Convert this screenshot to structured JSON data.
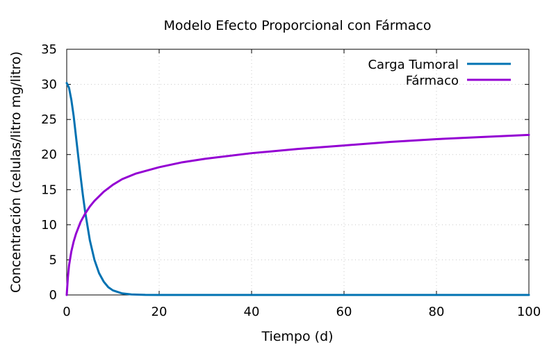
{
  "chart_data": {
    "type": "line",
    "title": "Modelo Efecto Proporcional con Fármaco",
    "xlabel": "Tiempo (d)",
    "ylabel": "Concentración (celulas/litro  mg/litro)",
    "xlim": [
      0,
      100
    ],
    "ylim": [
      0,
      35
    ],
    "xticks": [
      "0",
      "20",
      "40",
      "60",
      "80",
      "100"
    ],
    "yticks": [
      "0",
      "5",
      "10",
      "15",
      "20",
      "25",
      "30",
      "35"
    ],
    "grid": true,
    "legend_position": "top-right",
    "series": [
      {
        "name": "Carga Tumoral",
        "color": "#0072b2",
        "points": [
          [
            0,
            30.2
          ],
          [
            0.5,
            29.5
          ],
          [
            1,
            27.8
          ],
          [
            1.5,
            25.5
          ],
          [
            2,
            22.6
          ],
          [
            2.5,
            19.7
          ],
          [
            3,
            16.9
          ],
          [
            3.5,
            14.2
          ],
          [
            4,
            11.8
          ],
          [
            5,
            7.8
          ],
          [
            6,
            5.0
          ],
          [
            7,
            3.1
          ],
          [
            8,
            1.9
          ],
          [
            9,
            1.1
          ],
          [
            10,
            0.65
          ],
          [
            12,
            0.22
          ],
          [
            14,
            0.07
          ],
          [
            17,
            0.01
          ],
          [
            20,
            0
          ],
          [
            40,
            0
          ],
          [
            60,
            0
          ],
          [
            80,
            0
          ],
          [
            100,
            0
          ]
        ]
      },
      {
        "name": "Fármaco",
        "color": "#9400d3",
        "points": [
          [
            0,
            0
          ],
          [
            0.25,
            2.5
          ],
          [
            0.5,
            4.2
          ],
          [
            1,
            6.2
          ],
          [
            1.5,
            7.6
          ],
          [
            2,
            8.7
          ],
          [
            3,
            10.4
          ],
          [
            4,
            11.6
          ],
          [
            5,
            12.6
          ],
          [
            6,
            13.4
          ],
          [
            8,
            14.7
          ],
          [
            10,
            15.7
          ],
          [
            12,
            16.5
          ],
          [
            15,
            17.3
          ],
          [
            20,
            18.2
          ],
          [
            25,
            18.9
          ],
          [
            30,
            19.4
          ],
          [
            40,
            20.2
          ],
          [
            50,
            20.8
          ],
          [
            60,
            21.3
          ],
          [
            70,
            21.8
          ],
          [
            80,
            22.2
          ],
          [
            90,
            22.5
          ],
          [
            100,
            22.8
          ]
        ]
      }
    ]
  }
}
